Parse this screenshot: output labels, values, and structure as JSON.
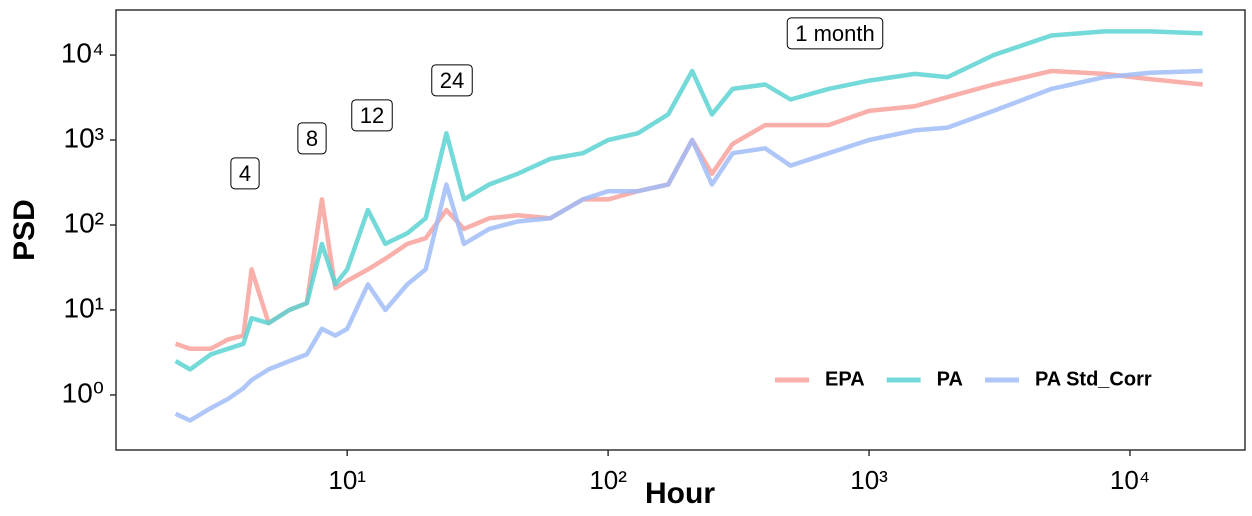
{
  "chart_data": {
    "type": "line",
    "xlabel": "Hour",
    "ylabel": "PSD",
    "xscale": "log",
    "yscale": "log",
    "grid": false,
    "legend_position": "bottom-right",
    "xlim": [
      1.3,
      27600
    ],
    "ylim": [
      0.225,
      33900
    ],
    "xticks": [
      {
        "value": 10,
        "label": "10¹"
      },
      {
        "value": 100,
        "label": "10²"
      },
      {
        "value": 1000,
        "label": "10³"
      },
      {
        "value": 10000,
        "label": "10⁴"
      }
    ],
    "yticks": [
      {
        "value": 1,
        "label": "10⁰"
      },
      {
        "value": 10,
        "label": "10¹"
      },
      {
        "value": 100,
        "label": "10²"
      },
      {
        "value": 1000,
        "label": "10³"
      },
      {
        "value": 10000,
        "label": "10⁴"
      }
    ],
    "annotations": [
      "4",
      "8",
      "12",
      "24",
      "1 month"
    ],
    "x": [
      2.2,
      2.5,
      3,
      3.5,
      4,
      4.3,
      5,
      6,
      7,
      8,
      9,
      10,
      12,
      14,
      17,
      20,
      24,
      28,
      35,
      45,
      60,
      80,
      100,
      130,
      170,
      210,
      250,
      300,
      400,
      500,
      700,
      1000,
      1500,
      2000,
      3000,
      5000,
      8000,
      12000,
      19000
    ],
    "series": [
      {
        "name": "EPA",
        "color": "#f8a19b",
        "values": [
          4,
          3.5,
          3.5,
          4.5,
          5,
          30,
          7,
          10,
          12,
          200,
          18,
          22,
          30,
          40,
          60,
          70,
          150,
          90,
          120,
          130,
          120,
          200,
          200,
          250,
          300,
          1000,
          400,
          900,
          1500,
          1500,
          1500,
          2200,
          2500,
          3200,
          4500,
          6500,
          6000,
          5200,
          4500
        ]
      },
      {
        "name": "PA",
        "color": "#5cd2d2",
        "values": [
          2.5,
          2,
          3,
          3.5,
          4,
          8,
          7,
          10,
          12,
          60,
          20,
          30,
          150,
          60,
          80,
          120,
          1200,
          200,
          300,
          400,
          600,
          700,
          1000,
          1200,
          2000,
          6500,
          2000,
          4000,
          4500,
          3000,
          4000,
          5000,
          6000,
          5500,
          10000,
          17000,
          19000,
          19000,
          18000
        ]
      },
      {
        "name": "PA Std_Corr",
        "color": "#a1bcf8",
        "values": [
          0.6,
          0.5,
          0.7,
          0.9,
          1.2,
          1.5,
          2,
          2.5,
          3,
          6,
          5,
          6,
          20,
          10,
          20,
          30,
          300,
          60,
          90,
          110,
          120,
          200,
          250,
          250,
          300,
          1000,
          300,
          700,
          800,
          500,
          700,
          1000,
          1300,
          1400,
          2200,
          4000,
          5500,
          6200,
          6500
        ]
      }
    ]
  }
}
